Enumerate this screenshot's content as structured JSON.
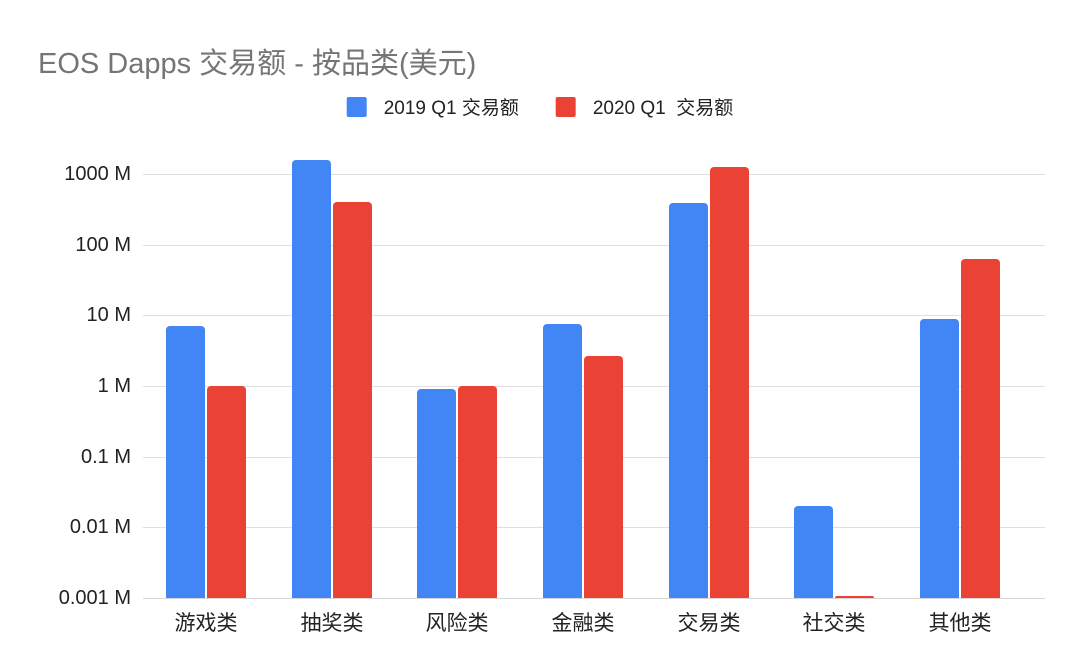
{
  "chart": {
    "title": "EOS Dapps 交易额 - 按品类(美元)"
  },
  "chart_data": {
    "type": "bar",
    "title": "EOS Dapps 交易额 - 按品类(美元)",
    "subtitle": "",
    "categories": [
      "游戏类",
      "抽奖类",
      "风险类",
      "金融类",
      "交易类",
      "社交类",
      "其他类"
    ],
    "series": [
      {
        "name": "2019 Q1 交易额",
        "color": "#4285F4",
        "values": [
          7,
          1600,
          0.9,
          7.5,
          390,
          0.02,
          9
        ]
      },
      {
        "name": "2020 Q1  交易额",
        "color": "#EA4335",
        "values": [
          1,
          400,
          1,
          2.7,
          1250,
          0.001,
          63
        ]
      }
    ],
    "y_axis": {
      "scale": "log",
      "unit_suffix": "M",
      "tick_values": [
        1000,
        100,
        10,
        1,
        0.1,
        0.01,
        0.001
      ],
      "tick_labels": [
        "1000 M",
        "100 M",
        "10 M",
        "1 M",
        "0.1 M",
        "0.01 M",
        "0.001 M"
      ],
      "range_min": 0.001,
      "range_max": 3000
    },
    "xlabel": "",
    "ylabel": "",
    "grid": true,
    "legend_position": "top",
    "palette": {
      "grid": "#e0e0e0",
      "axis_text": "#222222",
      "title_text": "#757575",
      "background": "#ffffff"
    }
  }
}
